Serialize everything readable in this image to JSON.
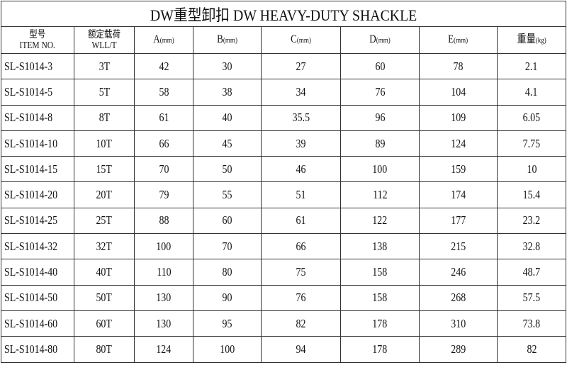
{
  "title": "DW重型卸扣  DW HEAVY-DUTY SHACKLE",
  "headers": {
    "item_cn": "型号",
    "item_en": "ITEM NO.",
    "wll_cn": "额定载荷",
    "wll_en": "WLL/T",
    "a": "A",
    "b": "B",
    "c": "C",
    "d": "D",
    "e": "E",
    "weight": "重量",
    "unit_mm": "(mm)",
    "unit_kg": "(kg)"
  },
  "rows": [
    [
      "SL-S1014-3",
      "3T",
      "42",
      "30",
      "27",
      "60",
      "78",
      "2.1"
    ],
    [
      "SL-S1014-5",
      "5T",
      "58",
      "38",
      "34",
      "76",
      "104",
      "4.1"
    ],
    [
      "SL-S1014-8",
      "8T",
      "61",
      "40",
      "35.5",
      "96",
      "109",
      "6.05"
    ],
    [
      "SL-S1014-10",
      "10T",
      "66",
      "45",
      "39",
      "89",
      "124",
      "7.75"
    ],
    [
      "SL-S1014-15",
      "15T",
      "70",
      "50",
      "46",
      "100",
      "159",
      "10"
    ],
    [
      "SL-S1014-20",
      "20T",
      "79",
      "55",
      "51",
      "112",
      "174",
      "15.4"
    ],
    [
      "SL-S1014-25",
      "25T",
      "88",
      "60",
      "61",
      "122",
      "177",
      "23.2"
    ],
    [
      "SL-S1014-32",
      "32T",
      "100",
      "70",
      "66",
      "138",
      "215",
      "32.8"
    ],
    [
      "SL-S1014-40",
      "40T",
      "110",
      "80",
      "75",
      "158",
      "246",
      "48.7"
    ],
    [
      "SL-S1014-50",
      "50T",
      "130",
      "90",
      "76",
      "158",
      "268",
      "57.5"
    ],
    [
      "SL-S1014-60",
      "60T",
      "130",
      "95",
      "82",
      "178",
      "310",
      "73.8"
    ],
    [
      "SL-S1014-80",
      "80T",
      "124",
      "100",
      "94",
      "178",
      "289",
      "82"
    ]
  ]
}
